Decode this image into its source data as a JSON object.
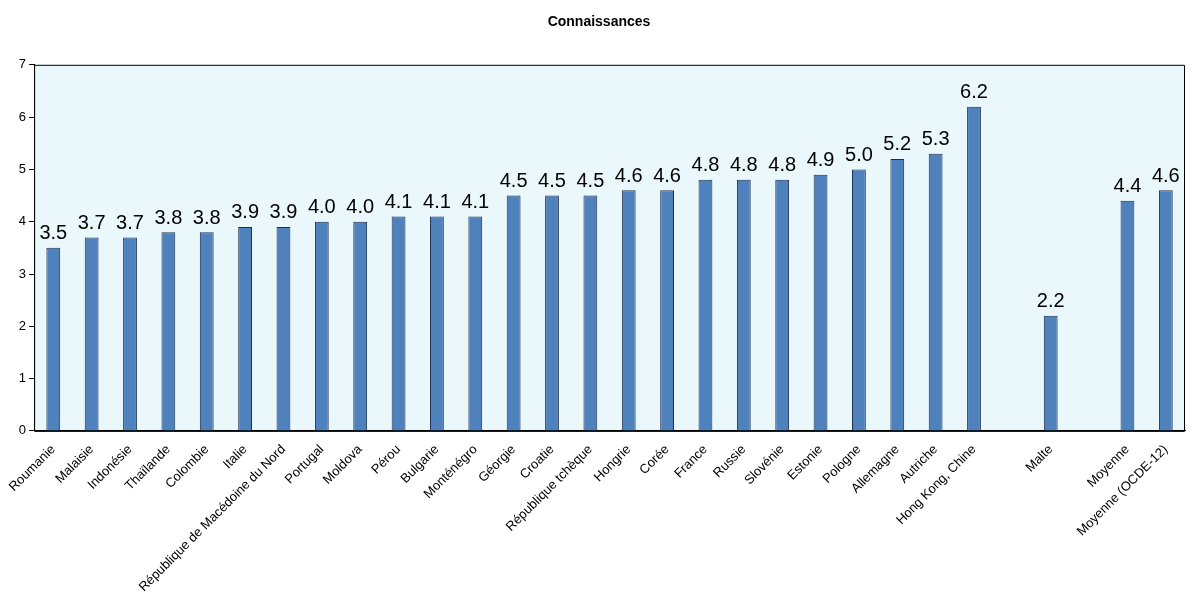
{
  "chart_data": {
    "type": "bar",
    "title": "Connaissances",
    "categories": [
      "Roumanie",
      "Malaisie",
      "Indonésie",
      "Thaïlande",
      "Colombie",
      "Italie",
      "République de Macédoine du Nord",
      "Portugal",
      "Moldova",
      "Pérou",
      "Bulgarie",
      "Monténégro",
      "Géorgie",
      "Croatie",
      "République tchèque",
      "Hongrie",
      "Corée",
      "France",
      "Russie",
      "Slovénie",
      "Estonie",
      "Pologne",
      "Allemagne",
      "Autriche",
      "Hong Kong, Chine",
      null,
      "Malte",
      null,
      "Moyenne",
      "Moyenne (OCDE-12)"
    ],
    "values": [
      3.5,
      3.7,
      3.7,
      3.8,
      3.8,
      3.9,
      3.9,
      4.0,
      4.0,
      4.1,
      4.1,
      4.1,
      4.5,
      4.5,
      4.5,
      4.6,
      4.6,
      4.8,
      4.8,
      4.8,
      4.9,
      5.0,
      5.2,
      5.3,
      6.2,
      null,
      2.2,
      null,
      4.4,
      4.6
    ],
    "value_labels": [
      "3.5",
      "3.7",
      "3.7",
      "3.8",
      "3.8",
      "3.9",
      "3.9",
      "4.0",
      "4.0",
      "4.1",
      "4.1",
      "4.1",
      "4.5",
      "4.5",
      "4.5",
      "4.6",
      "4.6",
      "4.8",
      "4.8",
      "4.8",
      "4.9",
      "5.0",
      "5.2",
      "5.3",
      "6.2",
      null,
      "2.2",
      null,
      "4.4",
      "4.6"
    ],
    "color": "#4f81bd",
    "ylim": [
      0,
      7
    ],
    "yticks": [
      0,
      1,
      2,
      3,
      4,
      5,
      6,
      7
    ],
    "grid": false,
    "legend": false
  }
}
